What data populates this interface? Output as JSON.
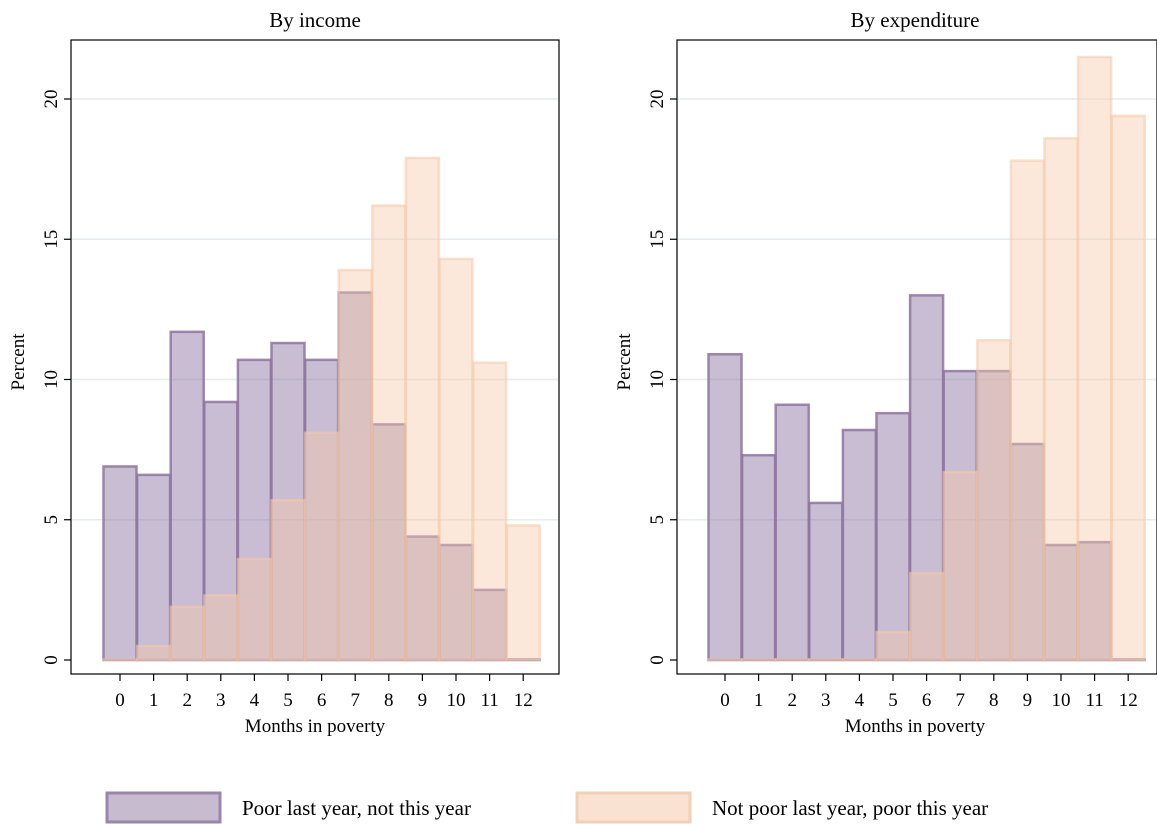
{
  "chart_data": [
    {
      "type": "bar",
      "title": "By income",
      "xlabel": "Months in poverty",
      "ylabel": "Percent",
      "categories": [
        0,
        1,
        2,
        3,
        4,
        5,
        6,
        7,
        8,
        9,
        10,
        11,
        12
      ],
      "ylim": [
        0,
        22
      ],
      "yticks": [
        0,
        5,
        10,
        15,
        20
      ],
      "grid": true,
      "series": [
        {
          "name": "Poor last year, not this year",
          "color": "#8d76a0",
          "values": [
            6.9,
            6.6,
            11.7,
            9.2,
            10.7,
            11.3,
            10.7,
            13.1,
            8.4,
            4.4,
            4.1,
            2.5,
            0
          ]
        },
        {
          "name": "Not poor last year, poor this year",
          "color": "#f5c9a7",
          "values": [
            0,
            0.5,
            1.9,
            2.3,
            3.6,
            5.7,
            8.1,
            13.9,
            16.2,
            17.9,
            14.3,
            10.6,
            4.8
          ]
        }
      ]
    },
    {
      "type": "bar",
      "title": "By expenditure",
      "xlabel": "Months in poverty",
      "ylabel": "Percent",
      "categories": [
        0,
        1,
        2,
        3,
        4,
        5,
        6,
        7,
        8,
        9,
        10,
        11,
        12
      ],
      "ylim": [
        0,
        22
      ],
      "yticks": [
        0,
        5,
        10,
        15,
        20
      ],
      "grid": true,
      "series": [
        {
          "name": "Poor last year, not this year",
          "color": "#8d76a0",
          "values": [
            10.9,
            7.3,
            9.1,
            5.6,
            8.2,
            8.8,
            13.0,
            10.3,
            10.3,
            7.7,
            4.1,
            4.2,
            0
          ]
        },
        {
          "name": "Not poor last year, poor this year",
          "color": "#f5c9a7",
          "values": [
            0,
            0,
            0,
            0,
            0,
            1.0,
            3.1,
            6.7,
            11.4,
            17.8,
            18.6,
            21.5,
            19.4
          ]
        }
      ]
    }
  ],
  "legend": {
    "position": "bottom",
    "items": [
      {
        "label": "Poor last year, not this year",
        "fill": "#c7bbd0",
        "stroke": "#9a86aa"
      },
      {
        "label": "Not poor last year, poor this year",
        "fill": "#f9e2d2",
        "stroke": "#f3cfb5"
      }
    ]
  }
}
